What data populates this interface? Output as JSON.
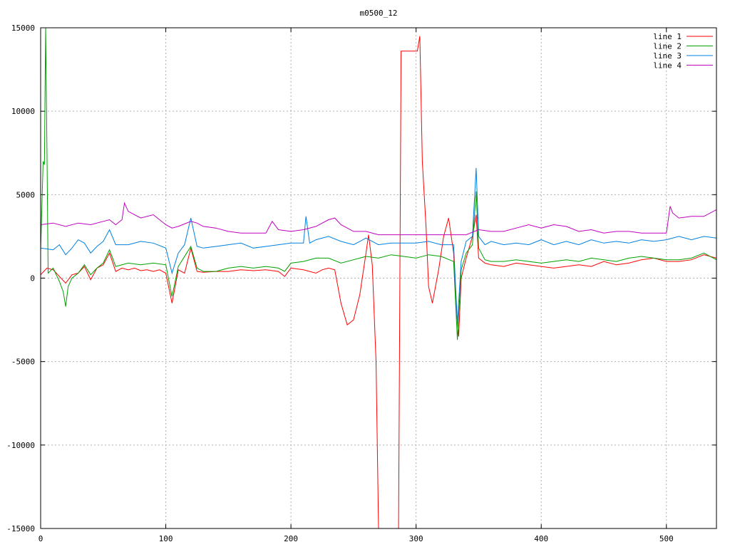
{
  "chart_data": {
    "type": "line",
    "title": "m0500_12",
    "xlabel": "",
    "ylabel": "",
    "xlim": [
      0,
      540
    ],
    "ylim": [
      -15000,
      15000
    ],
    "xticks": [
      0,
      100,
      200,
      300,
      400,
      500
    ],
    "yticks": [
      -15000,
      -10000,
      -5000,
      0,
      5000,
      10000,
      15000
    ],
    "grid": true,
    "legend_position": "top-right",
    "series": [
      {
        "name": "line 1",
        "color": "#ff0000",
        "points": [
          [
            0,
            200
          ],
          [
            5,
            600
          ],
          [
            10,
            500
          ],
          [
            15,
            100
          ],
          [
            20,
            -300
          ],
          [
            25,
            200
          ],
          [
            30,
            300
          ],
          [
            35,
            700
          ],
          [
            40,
            -100
          ],
          [
            45,
            600
          ],
          [
            50,
            800
          ],
          [
            55,
            1500
          ],
          [
            60,
            400
          ],
          [
            65,
            600
          ],
          [
            70,
            500
          ],
          [
            75,
            600
          ],
          [
            80,
            450
          ],
          [
            85,
            500
          ],
          [
            90,
            400
          ],
          [
            95,
            500
          ],
          [
            100,
            300
          ],
          [
            105,
            -1500
          ],
          [
            110,
            500
          ],
          [
            115,
            300
          ],
          [
            120,
            1800
          ],
          [
            125,
            400
          ],
          [
            130,
            350
          ],
          [
            140,
            400
          ],
          [
            150,
            400
          ],
          [
            160,
            500
          ],
          [
            170,
            450
          ],
          [
            180,
            500
          ],
          [
            190,
            400
          ],
          [
            195,
            100
          ],
          [
            200,
            600
          ],
          [
            210,
            500
          ],
          [
            220,
            300
          ],
          [
            225,
            500
          ],
          [
            230,
            600
          ],
          [
            235,
            500
          ],
          [
            240,
            -1500
          ],
          [
            245,
            -2800
          ],
          [
            250,
            -2500
          ],
          [
            255,
            -1000
          ],
          [
            260,
            1500
          ],
          [
            262,
            2600
          ],
          [
            265,
            800
          ],
          [
            268,
            -5000
          ],
          [
            270,
            -15000
          ],
          [
            286,
            -15000
          ],
          [
            288,
            13600
          ],
          [
            301,
            13600
          ],
          [
            303,
            14500
          ],
          [
            305,
            7000
          ],
          [
            308,
            3000
          ],
          [
            310,
            -500
          ],
          [
            313,
            -1500
          ],
          [
            318,
            500
          ],
          [
            322,
            2500
          ],
          [
            326,
            3600
          ],
          [
            330,
            1500
          ],
          [
            332,
            -1700
          ],
          [
            334,
            -3500
          ],
          [
            336,
            0
          ],
          [
            340,
            1200
          ],
          [
            345,
            2500
          ],
          [
            348,
            3800
          ],
          [
            350,
            1200
          ],
          [
            355,
            900
          ],
          [
            360,
            800
          ],
          [
            370,
            700
          ],
          [
            380,
            900
          ],
          [
            390,
            800
          ],
          [
            400,
            700
          ],
          [
            410,
            600
          ],
          [
            420,
            700
          ],
          [
            430,
            800
          ],
          [
            440,
            700
          ],
          [
            450,
            1000
          ],
          [
            460,
            800
          ],
          [
            470,
            900
          ],
          [
            480,
            1100
          ],
          [
            490,
            1200
          ],
          [
            500,
            1000
          ],
          [
            510,
            1000
          ],
          [
            520,
            1100
          ],
          [
            530,
            1400
          ],
          [
            540,
            1200
          ]
        ]
      },
      {
        "name": "line 2",
        "color": "#00a000",
        "points": [
          [
            0,
            1600
          ],
          [
            2,
            7000
          ],
          [
            3,
            6800
          ],
          [
            4,
            15000
          ],
          [
            5,
            8000
          ],
          [
            6,
            300
          ],
          [
            10,
            600
          ],
          [
            15,
            -200
          ],
          [
            18,
            -800
          ],
          [
            20,
            -1700
          ],
          [
            22,
            -500
          ],
          [
            25,
            0
          ],
          [
            30,
            300
          ],
          [
            35,
            800
          ],
          [
            40,
            200
          ],
          [
            45,
            600
          ],
          [
            50,
            900
          ],
          [
            55,
            1700
          ],
          [
            60,
            700
          ],
          [
            70,
            900
          ],
          [
            80,
            800
          ],
          [
            90,
            900
          ],
          [
            100,
            800
          ],
          [
            105,
            -1100
          ],
          [
            110,
            700
          ],
          [
            120,
            1900
          ],
          [
            125,
            600
          ],
          [
            130,
            400
          ],
          [
            140,
            400
          ],
          [
            150,
            600
          ],
          [
            160,
            700
          ],
          [
            170,
            600
          ],
          [
            180,
            700
          ],
          [
            190,
            600
          ],
          [
            195,
            400
          ],
          [
            200,
            900
          ],
          [
            210,
            1000
          ],
          [
            220,
            1200
          ],
          [
            230,
            1200
          ],
          [
            240,
            900
          ],
          [
            250,
            1100
          ],
          [
            260,
            1300
          ],
          [
            270,
            1200
          ],
          [
            280,
            1400
          ],
          [
            290,
            1300
          ],
          [
            300,
            1200
          ],
          [
            310,
            1400
          ],
          [
            320,
            1300
          ],
          [
            330,
            1000
          ],
          [
            333,
            -3700
          ],
          [
            336,
            500
          ],
          [
            340,
            1500
          ],
          [
            345,
            2000
          ],
          [
            348,
            5200
          ],
          [
            350,
            1800
          ],
          [
            355,
            1100
          ],
          [
            360,
            1000
          ],
          [
            370,
            1000
          ],
          [
            380,
            1100
          ],
          [
            390,
            1000
          ],
          [
            400,
            900
          ],
          [
            410,
            1000
          ],
          [
            420,
            1100
          ],
          [
            430,
            1000
          ],
          [
            440,
            1200
          ],
          [
            450,
            1100
          ],
          [
            460,
            1000
          ],
          [
            470,
            1200
          ],
          [
            480,
            1300
          ],
          [
            490,
            1200
          ],
          [
            500,
            1100
          ],
          [
            510,
            1100
          ],
          [
            520,
            1200
          ],
          [
            530,
            1500
          ],
          [
            540,
            1100
          ]
        ]
      },
      {
        "name": "line 3",
        "color": "#0080e0",
        "points": [
          [
            0,
            1800
          ],
          [
            10,
            1700
          ],
          [
            15,
            2000
          ],
          [
            20,
            1400
          ],
          [
            25,
            1800
          ],
          [
            30,
            2300
          ],
          [
            35,
            2100
          ],
          [
            40,
            1500
          ],
          [
            45,
            1900
          ],
          [
            50,
            2200
          ],
          [
            55,
            2900
          ],
          [
            60,
            2000
          ],
          [
            70,
            2000
          ],
          [
            80,
            2200
          ],
          [
            90,
            2100
          ],
          [
            100,
            1800
          ],
          [
            105,
            300
          ],
          [
            110,
            1500
          ],
          [
            115,
            2000
          ],
          [
            120,
            3600
          ],
          [
            125,
            1900
          ],
          [
            130,
            1800
          ],
          [
            140,
            1900
          ],
          [
            150,
            2000
          ],
          [
            160,
            2100
          ],
          [
            170,
            1800
          ],
          [
            180,
            1900
          ],
          [
            190,
            2000
          ],
          [
            200,
            2100
          ],
          [
            210,
            2100
          ],
          [
            212,
            3700
          ],
          [
            215,
            2100
          ],
          [
            220,
            2300
          ],
          [
            230,
            2500
          ],
          [
            240,
            2200
          ],
          [
            250,
            2000
          ],
          [
            260,
            2400
          ],
          [
            270,
            2000
          ],
          [
            280,
            2100
          ],
          [
            290,
            2100
          ],
          [
            300,
            2100
          ],
          [
            310,
            2200
          ],
          [
            320,
            2000
          ],
          [
            330,
            2000
          ],
          [
            333,
            -2700
          ],
          [
            336,
            1000
          ],
          [
            340,
            2200
          ],
          [
            345,
            2500
          ],
          [
            348,
            6600
          ],
          [
            350,
            2500
          ],
          [
            355,
            2000
          ],
          [
            360,
            2200
          ],
          [
            370,
            2000
          ],
          [
            380,
            2100
          ],
          [
            390,
            2000
          ],
          [
            400,
            2300
          ],
          [
            410,
            2000
          ],
          [
            420,
            2200
          ],
          [
            430,
            2000
          ],
          [
            440,
            2300
          ],
          [
            450,
            2100
          ],
          [
            460,
            2200
          ],
          [
            470,
            2100
          ],
          [
            480,
            2300
          ],
          [
            490,
            2200
          ],
          [
            500,
            2300
          ],
          [
            510,
            2500
          ],
          [
            520,
            2300
          ],
          [
            530,
            2500
          ],
          [
            540,
            2400
          ]
        ]
      },
      {
        "name": "line 4",
        "color": "#c000c0",
        "points": [
          [
            0,
            3200
          ],
          [
            10,
            3300
          ],
          [
            20,
            3100
          ],
          [
            30,
            3300
          ],
          [
            40,
            3200
          ],
          [
            50,
            3400
          ],
          [
            55,
            3500
          ],
          [
            60,
            3200
          ],
          [
            65,
            3500
          ],
          [
            67,
            4500
          ],
          [
            70,
            4000
          ],
          [
            80,
            3600
          ],
          [
            90,
            3800
          ],
          [
            100,
            3200
          ],
          [
            105,
            3000
          ],
          [
            110,
            3100
          ],
          [
            120,
            3400
          ],
          [
            125,
            3300
          ],
          [
            130,
            3100
          ],
          [
            140,
            3000
          ],
          [
            150,
            2800
          ],
          [
            160,
            2700
          ],
          [
            170,
            2700
          ],
          [
            180,
            2700
          ],
          [
            185,
            3400
          ],
          [
            190,
            2900
          ],
          [
            200,
            2800
          ],
          [
            210,
            2900
          ],
          [
            220,
            3100
          ],
          [
            230,
            3500
          ],
          [
            235,
            3600
          ],
          [
            240,
            3200
          ],
          [
            250,
            2800
          ],
          [
            260,
            2800
          ],
          [
            270,
            2600
          ],
          [
            280,
            2600
          ],
          [
            290,
            2600
          ],
          [
            300,
            2600
          ],
          [
            310,
            2600
          ],
          [
            320,
            2600
          ],
          [
            330,
            2600
          ],
          [
            340,
            2600
          ],
          [
            350,
            2900
          ],
          [
            360,
            2800
          ],
          [
            370,
            2800
          ],
          [
            380,
            3000
          ],
          [
            390,
            3200
          ],
          [
            400,
            3000
          ],
          [
            410,
            3200
          ],
          [
            420,
            3100
          ],
          [
            430,
            2800
          ],
          [
            440,
            2900
          ],
          [
            450,
            2700
          ],
          [
            460,
            2800
          ],
          [
            470,
            2800
          ],
          [
            480,
            2700
          ],
          [
            490,
            2700
          ],
          [
            500,
            2700
          ],
          [
            503,
            4300
          ],
          [
            505,
            3900
          ],
          [
            510,
            3600
          ],
          [
            520,
            3700
          ],
          [
            530,
            3700
          ],
          [
            540,
            4100
          ]
        ]
      }
    ]
  }
}
